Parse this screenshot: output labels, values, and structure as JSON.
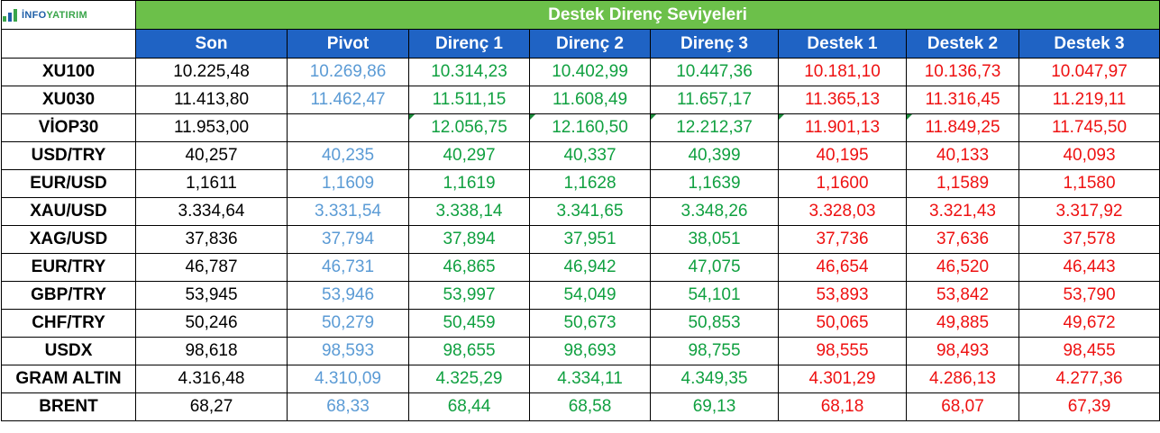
{
  "logo": {
    "prefix": "İNFO",
    "suffix": "YATIRIM"
  },
  "title": "Destek Direnç Seviyeleri",
  "columns": [
    "Son",
    "Pivot",
    "Direnç 1",
    "Direnç 2",
    "Direnç 3",
    "Destek 1",
    "Destek 2",
    "Destek 3"
  ],
  "colors": {
    "title_bg": "#6cc04a",
    "header_bg": "#1f63c4",
    "son": "#000000",
    "pivot": "#5b9bd5",
    "direnc": "#10a040",
    "destek": "#ee1111"
  },
  "rows": [
    {
      "label": "XU100",
      "values": [
        "10.225,48",
        "10.269,86",
        "10.314,23",
        "10.402,99",
        "10.447,36",
        "10.181,10",
        "10.136,73",
        "10.047,97"
      ]
    },
    {
      "label": "XU030",
      "values": [
        "11.413,80",
        "11.462,47",
        "11.511,15",
        "11.608,49",
        "11.657,17",
        "11.365,13",
        "11.316,45",
        "11.219,11"
      ]
    },
    {
      "label": "VİOP30",
      "values": [
        "11.953,00",
        "",
        "12.056,75",
        "12.160,50",
        "12.212,37",
        "11.901,13",
        "11.849,25",
        "11.745,50"
      ]
    },
    {
      "label": "USD/TRY",
      "values": [
        "40,257",
        "40,235",
        "40,297",
        "40,337",
        "40,399",
        "40,195",
        "40,133",
        "40,093"
      ]
    },
    {
      "label": "EUR/USD",
      "values": [
        "1,1611",
        "1,1609",
        "1,1619",
        "1,1628",
        "1,1639",
        "1,1600",
        "1,1589",
        "1,1580"
      ]
    },
    {
      "label": "XAU/USD",
      "values": [
        "3.334,64",
        "3.331,54",
        "3.338,14",
        "3.341,65",
        "3.348,26",
        "3.328,03",
        "3.321,43",
        "3.317,92"
      ]
    },
    {
      "label": "XAG/USD",
      "values": [
        "37,836",
        "37,794",
        "37,894",
        "37,951",
        "38,051",
        "37,736",
        "37,636",
        "37,578"
      ]
    },
    {
      "label": "EUR/TRY",
      "values": [
        "46,787",
        "46,731",
        "46,865",
        "46,942",
        "47,075",
        "46,654",
        "46,520",
        "46,443"
      ]
    },
    {
      "label": "GBP/TRY",
      "values": [
        "53,945",
        "53,946",
        "53,997",
        "54,049",
        "54,101",
        "53,893",
        "53,842",
        "53,790"
      ]
    },
    {
      "label": "CHF/TRY",
      "values": [
        "50,246",
        "50,279",
        "50,459",
        "50,673",
        "50,853",
        "50,065",
        "49,885",
        "49,672"
      ]
    },
    {
      "label": "USDX",
      "values": [
        "98,618",
        "98,593",
        "98,655",
        "98,693",
        "98,755",
        "98,555",
        "98,493",
        "98,455"
      ]
    },
    {
      "label": "GRAM ALTIN",
      "values": [
        "4.316,48",
        "4.310,09",
        "4.325,29",
        "4.334,11",
        "4.349,35",
        "4.301,29",
        "4.286,13",
        "4.277,36"
      ]
    },
    {
      "label": "BRENT",
      "values": [
        "68,27",
        "68,33",
        "68,44",
        "68,58",
        "69,13",
        "68,18",
        "68,07",
        "67,39"
      ]
    }
  ]
}
